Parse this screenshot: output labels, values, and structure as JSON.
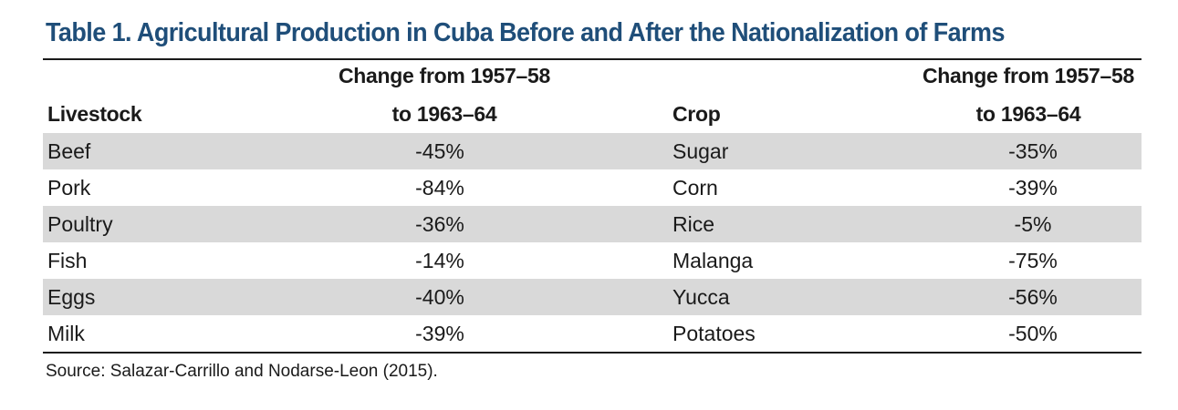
{
  "title": "Table 1. Agricultural Production in Cuba Before and After the Nationalization of Farms",
  "headers": {
    "livestock": "Livestock",
    "livestock_change_line1": "Change from 1957–58",
    "livestock_change_line2": "to 1963–64",
    "crop": "Crop",
    "crop_change_line1": "Change from 1957–58",
    "crop_change_line2": "to 1963–64"
  },
  "rows": [
    {
      "livestock": "Beef",
      "livestock_change": "-45%",
      "crop": "Sugar",
      "crop_change": "-35%"
    },
    {
      "livestock": "Pork",
      "livestock_change": "-84%",
      "crop": "Corn",
      "crop_change": "-39%"
    },
    {
      "livestock": "Poultry",
      "livestock_change": "-36%",
      "crop": "Rice",
      "crop_change": "-5%"
    },
    {
      "livestock": "Fish",
      "livestock_change": "-14%",
      "crop": "Malanga",
      "crop_change": "-75%"
    },
    {
      "livestock": "Eggs",
      "livestock_change": "-40%",
      "crop": "Yucca",
      "crop_change": "-56%"
    },
    {
      "livestock": "Milk",
      "livestock_change": "-39%",
      "crop": "Potatoes",
      "crop_change": "-50%"
    }
  ],
  "source": "Source: Salazar-Carrillo and Nodarse-Leon (2015).",
  "colors": {
    "title": "#1f4e79",
    "row_shade": "#d9d9d9"
  }
}
